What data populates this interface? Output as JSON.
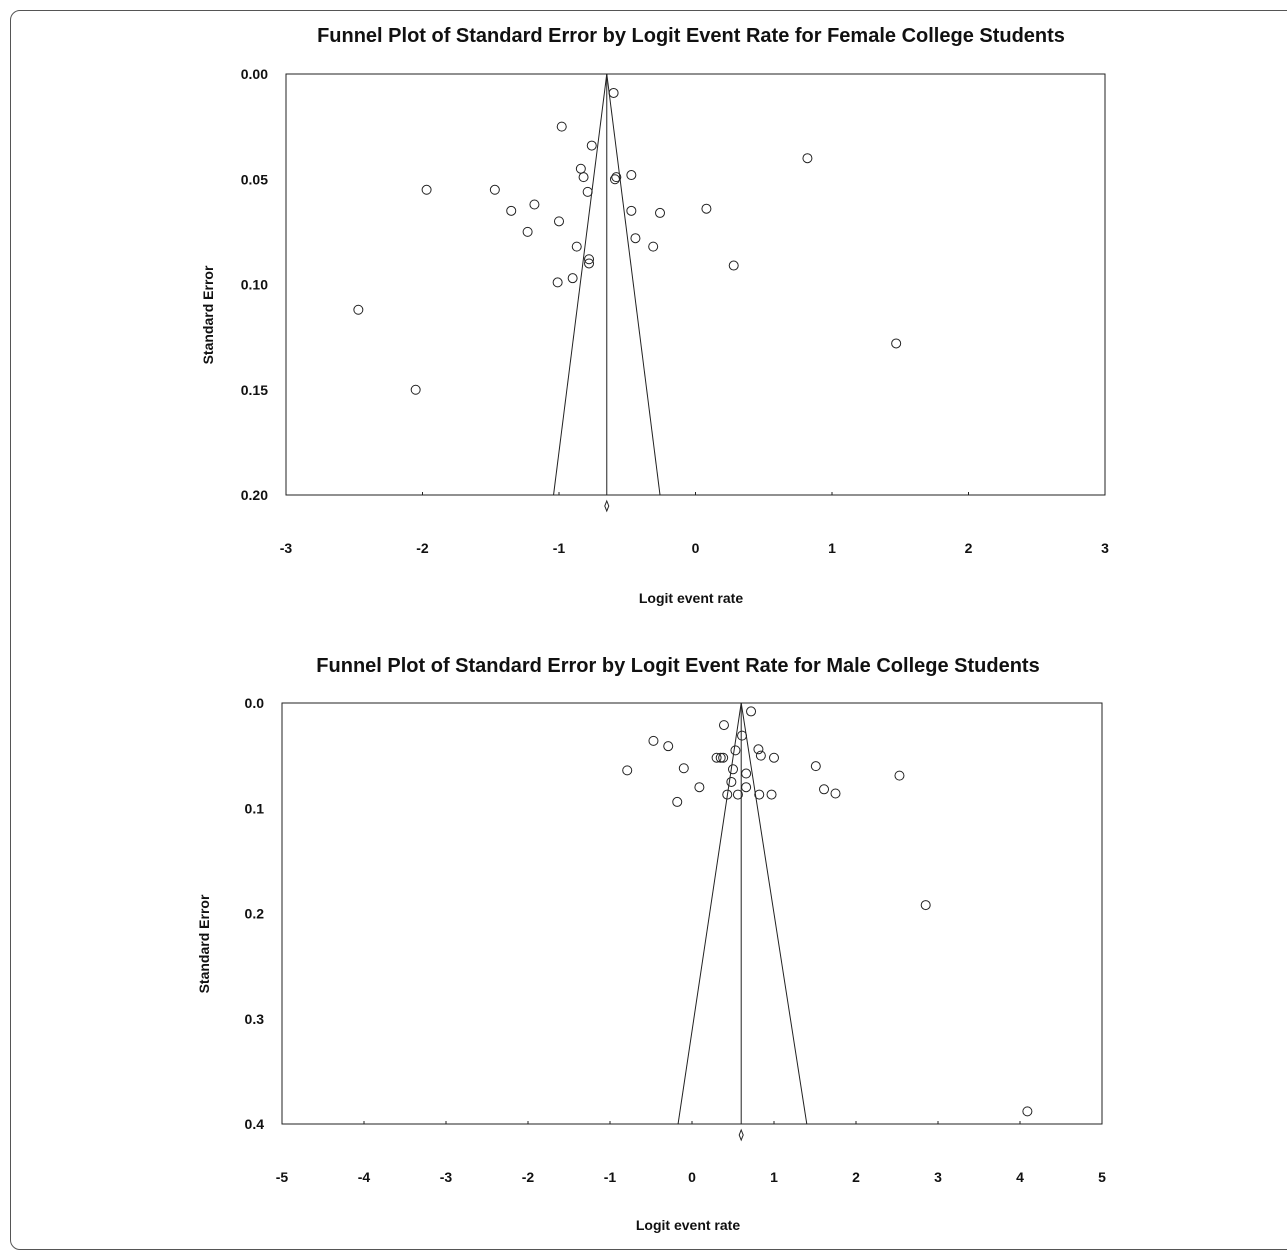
{
  "chart_data": [
    {
      "type": "scatter",
      "title": "Funnel Plot of Standard Error by Logit Event Rate for Female College Students",
      "xlabel": "Logit event rate",
      "ylabel": "Standard Error",
      "xlim": [
        -3,
        3
      ],
      "ylim": [
        0,
        0.2
      ],
      "y_inverted": true,
      "x_ticks": [
        -3,
        -2,
        -1,
        0,
        1,
        2,
        3
      ],
      "x_tick_labels": [
        "-3",
        "-2",
        "-1",
        "0",
        "1",
        "2",
        "3"
      ],
      "y_ticks": [
        0,
        0.05,
        0.1,
        0.15,
        0.2
      ],
      "y_tick_labels": [
        "0.00",
        "0.05",
        "0.10",
        "0.15",
        "0.20"
      ],
      "pooled_estimate": -0.65,
      "funnel_base_x": [
        -1.04,
        -0.26
      ],
      "points": [
        {
          "x": -0.6,
          "y": 0.009
        },
        {
          "x": -0.98,
          "y": 0.025
        },
        {
          "x": -0.76,
          "y": 0.034
        },
        {
          "x": 0.82,
          "y": 0.04
        },
        {
          "x": -0.84,
          "y": 0.045
        },
        {
          "x": -0.82,
          "y": 0.049
        },
        {
          "x": -0.58,
          "y": 0.049
        },
        {
          "x": -0.59,
          "y": 0.05
        },
        {
          "x": -0.47,
          "y": 0.048
        },
        {
          "x": -1.97,
          "y": 0.055
        },
        {
          "x": -1.47,
          "y": 0.055
        },
        {
          "x": -0.79,
          "y": 0.056
        },
        {
          "x": -1.18,
          "y": 0.062
        },
        {
          "x": -1.35,
          "y": 0.065
        },
        {
          "x": 0.08,
          "y": 0.064
        },
        {
          "x": -0.47,
          "y": 0.065
        },
        {
          "x": -0.26,
          "y": 0.066
        },
        {
          "x": -1.0,
          "y": 0.07
        },
        {
          "x": -1.23,
          "y": 0.075
        },
        {
          "x": -0.44,
          "y": 0.078
        },
        {
          "x": -0.87,
          "y": 0.082
        },
        {
          "x": -0.31,
          "y": 0.082
        },
        {
          "x": -0.78,
          "y": 0.088
        },
        {
          "x": -0.78,
          "y": 0.09
        },
        {
          "x": 0.28,
          "y": 0.091
        },
        {
          "x": -0.9,
          "y": 0.097
        },
        {
          "x": -1.01,
          "y": 0.099
        },
        {
          "x": -2.47,
          "y": 0.112
        },
        {
          "x": 1.47,
          "y": 0.128
        },
        {
          "x": -2.05,
          "y": 0.15
        }
      ]
    },
    {
      "type": "scatter",
      "title": "Funnel Plot of Standard Error by Logit Event Rate for Male College Students",
      "xlabel": "Logit event rate",
      "ylabel": "Standard Error",
      "xlim": [
        -5,
        5
      ],
      "ylim": [
        0,
        0.4
      ],
      "y_inverted": true,
      "x_ticks": [
        -5,
        -4,
        -3,
        -2,
        -1,
        0,
        1,
        2,
        3,
        4,
        5
      ],
      "x_tick_labels": [
        "-5",
        "-4",
        "-3",
        "-2",
        "-1",
        "0",
        "1",
        "2",
        "3",
        "4",
        "5"
      ],
      "y_ticks": [
        0,
        0.1,
        0.2,
        0.3,
        0.4
      ],
      "y_tick_labels": [
        "0.0",
        "0.1",
        "0.2",
        "0.3",
        "0.4"
      ],
      "pooled_estimate": 0.6,
      "funnel_base_x": [
        -0.17,
        1.4
      ],
      "points": [
        {
          "x": 0.72,
          "y": 0.008
        },
        {
          "x": 0.39,
          "y": 0.021
        },
        {
          "x": 0.61,
          "y": 0.031
        },
        {
          "x": -0.47,
          "y": 0.036
        },
        {
          "x": -0.29,
          "y": 0.041
        },
        {
          "x": 0.81,
          "y": 0.044
        },
        {
          "x": 0.53,
          "y": 0.045
        },
        {
          "x": 0.84,
          "y": 0.05
        },
        {
          "x": 0.3,
          "y": 0.052
        },
        {
          "x": 0.35,
          "y": 0.052
        },
        {
          "x": 0.38,
          "y": 0.052
        },
        {
          "x": 1.0,
          "y": 0.052
        },
        {
          "x": 1.51,
          "y": 0.06
        },
        {
          "x": -0.79,
          "y": 0.064
        },
        {
          "x": -0.1,
          "y": 0.062
        },
        {
          "x": 0.5,
          "y": 0.063
        },
        {
          "x": 0.66,
          "y": 0.067
        },
        {
          "x": 2.53,
          "y": 0.069
        },
        {
          "x": 0.48,
          "y": 0.075
        },
        {
          "x": 0.09,
          "y": 0.08
        },
        {
          "x": 0.66,
          "y": 0.08
        },
        {
          "x": 1.61,
          "y": 0.082
        },
        {
          "x": 1.75,
          "y": 0.086
        },
        {
          "x": 0.43,
          "y": 0.087
        },
        {
          "x": 0.56,
          "y": 0.087
        },
        {
          "x": 0.82,
          "y": 0.087
        },
        {
          "x": 0.97,
          "y": 0.087
        },
        {
          "x": -0.18,
          "y": 0.094
        },
        {
          "x": 2.85,
          "y": 0.192
        },
        {
          "x": 4.09,
          "y": 0.388
        }
      ]
    }
  ]
}
